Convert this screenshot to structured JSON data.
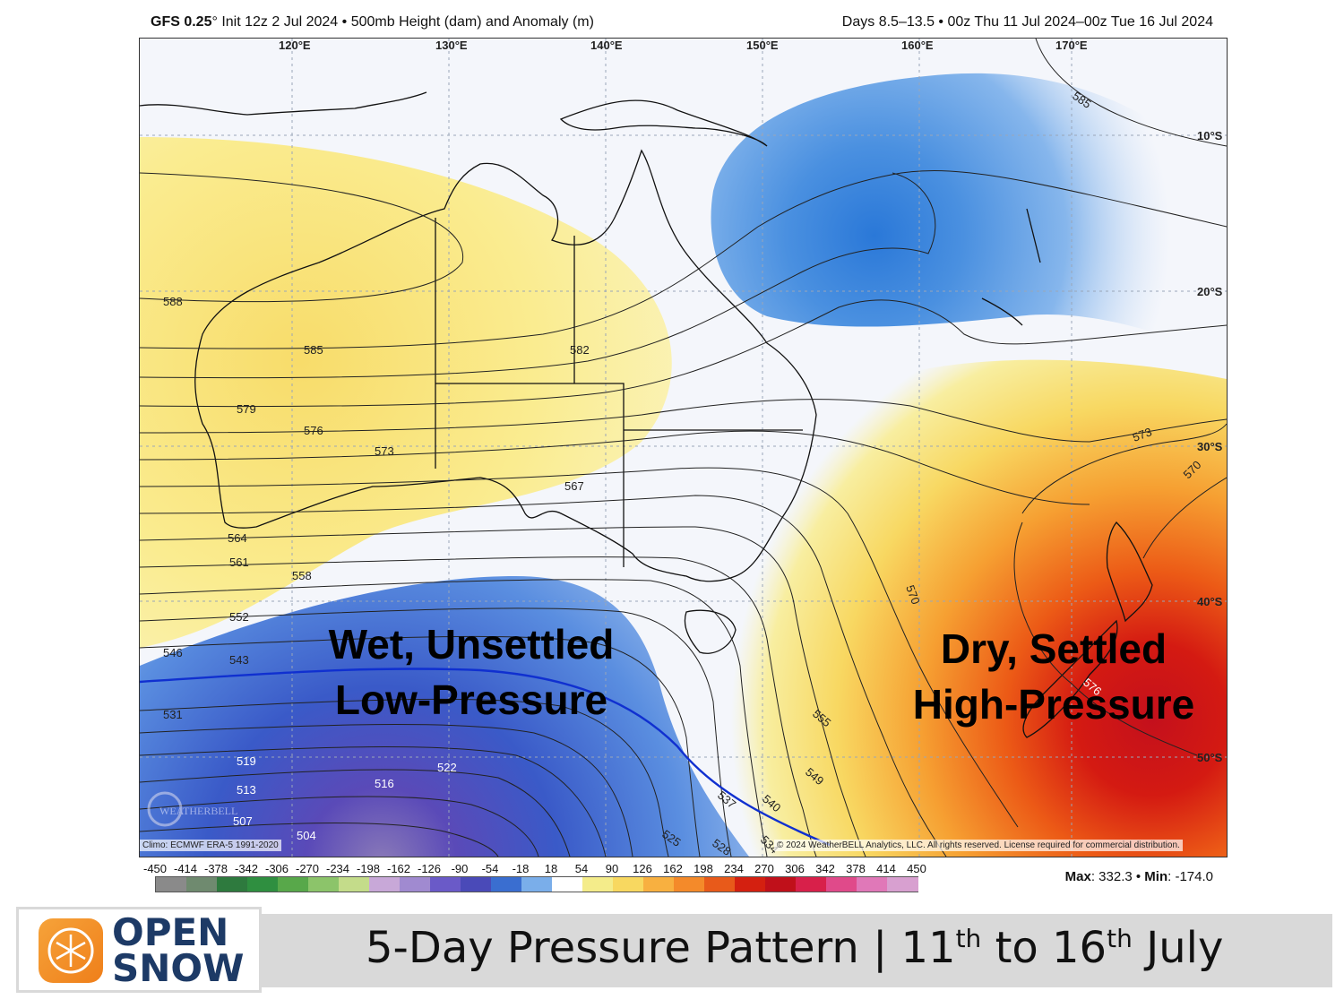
{
  "header": {
    "model": "GFS 0.25",
    "degree": "°",
    "left_rest": " Init 12z 2 Jul 2024 • 500mb Height (dam) and Anomaly (m)",
    "right": "Days 8.5–13.5 • 00z Thu 11 Jul 2024–00z Tue 16 Jul 2024"
  },
  "map": {
    "lon_labels": [
      "120°E",
      "130°E",
      "140°E",
      "150°E",
      "160°E",
      "170°E"
    ],
    "lat_labels": [
      "10°S",
      "20°S",
      "30°S",
      "40°S",
      "50°S"
    ],
    "contour_labels": [
      "588",
      "585",
      "579",
      "576",
      "573",
      "564",
      "561",
      "558",
      "552",
      "546",
      "543",
      "531",
      "519",
      "513",
      "507",
      "504",
      "516",
      "522",
      "525",
      "528",
      "534",
      "537",
      "540",
      "549",
      "555",
      "567",
      "570",
      "573",
      "570",
      "576",
      "582",
      "585"
    ],
    "annotation_low_line1": "Wet, Unsettled",
    "annotation_low_line2": "Low-Pressure",
    "annotation_high_line1": "Dry, Settled",
    "annotation_high_line2": "High-Pressure",
    "climo_note": "Climo: ECMWF ERA-5 1991-2020",
    "copyright": "© 2024 WeatherBELL Analytics, LLC. All rights reserved. License required for commercial distribution.",
    "watermark": "WEATHERBELL"
  },
  "scale": {
    "ticks": [
      "-450",
      "-414",
      "-378",
      "-342",
      "-306",
      "-270",
      "-234",
      "-198",
      "-162",
      "-126",
      "-90",
      "-54",
      "-18",
      "18",
      "54",
      "90",
      "126",
      "162",
      "198",
      "234",
      "270",
      "306",
      "342",
      "378",
      "414",
      "450"
    ],
    "colors": [
      "#8a8a8a",
      "#6f8a6f",
      "#2e7a3e",
      "#2f8f40",
      "#58a84a",
      "#8cc46a",
      "#c4dc8a",
      "#c8a8d8",
      "#a08ad0",
      "#6a5ac8",
      "#4a4ab8",
      "#3a6ed0",
      "#7aaeea",
      "#ffffff",
      "#f4ec8a",
      "#f8d860",
      "#f8b040",
      "#f48a2a",
      "#e85a1a",
      "#d42010",
      "#c0101a",
      "#d8204a",
      "#e04a8a",
      "#e078b8",
      "#d8a0d0"
    ]
  },
  "maxmin": {
    "max_label": "Max",
    "max_value": ": 332.3 • ",
    "min_label": "Min",
    "min_value": ": -174.0"
  },
  "footer": {
    "logo_line1": "OPEN",
    "logo_line2": "SNOW",
    "title_a": "5-Day Pressure Pattern | 11",
    "sup1": "th",
    "title_b": " to 16",
    "sup2": "th",
    "title_c": " July"
  }
}
